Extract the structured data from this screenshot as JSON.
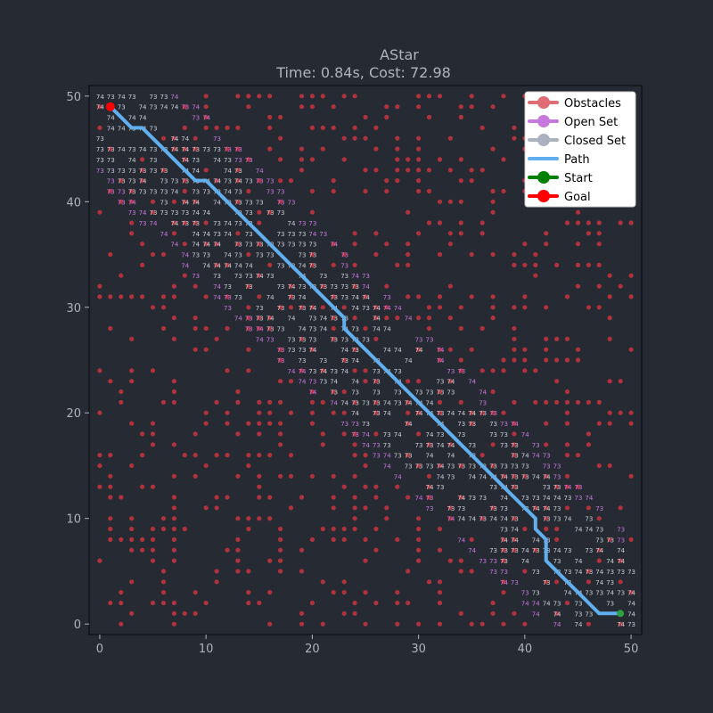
{
  "chart_data": {
    "type": "scatter",
    "title": "AStar",
    "subtitle": "Time: 0.84s, Cost: 72.98",
    "xlim": [
      -1,
      51
    ],
    "ylim": [
      -1,
      51
    ],
    "x_ticks": [
      0,
      10,
      20,
      30,
      40,
      50
    ],
    "y_ticks": [
      0,
      10,
      20,
      30,
      40,
      50
    ],
    "grid": false,
    "legend_position": "top-right",
    "start": [
      49,
      1
    ],
    "goal": [
      1,
      49
    ],
    "path": [
      [
        49,
        1
      ],
      [
        48,
        1
      ],
      [
        47,
        1
      ],
      [
        46,
        2
      ],
      [
        45,
        3
      ],
      [
        44,
        4
      ],
      [
        43,
        5
      ],
      [
        42,
        6
      ],
      [
        42,
        7
      ],
      [
        42,
        8
      ],
      [
        41,
        9
      ],
      [
        41,
        10
      ],
      [
        40,
        11
      ],
      [
        39,
        12
      ],
      [
        38,
        13
      ],
      [
        37,
        14
      ],
      [
        36,
        15
      ],
      [
        35,
        16
      ],
      [
        34,
        17
      ],
      [
        33,
        18
      ],
      [
        32,
        19
      ],
      [
        31,
        20
      ],
      [
        30,
        21
      ],
      [
        29,
        22
      ],
      [
        28,
        23
      ],
      [
        27,
        24
      ],
      [
        26,
        25
      ],
      [
        25,
        26
      ],
      [
        24,
        27
      ],
      [
        23,
        28
      ],
      [
        23,
        29
      ],
      [
        22,
        30
      ],
      [
        21,
        31
      ],
      [
        20,
        32
      ],
      [
        19,
        33
      ],
      [
        18,
        34
      ],
      [
        17,
        35
      ],
      [
        16,
        36
      ],
      [
        15,
        37
      ],
      [
        14,
        38
      ],
      [
        13,
        39
      ],
      [
        12,
        40
      ],
      [
        11,
        41
      ],
      [
        10,
        42
      ],
      [
        9,
        42
      ],
      [
        8,
        43
      ],
      [
        7,
        44
      ],
      [
        6,
        45
      ],
      [
        5,
        46
      ],
      [
        4,
        47
      ],
      [
        3,
        47
      ],
      [
        2,
        48
      ],
      [
        1,
        49
      ]
    ],
    "band_halfwidth": 5,
    "obstacle_density": 0.3,
    "series": [
      {
        "name": "Obstacles",
        "color": "#e06c75",
        "marker": "dot",
        "line": true
      },
      {
        "name": "Open Set",
        "color": "#c678dd",
        "marker": "dot",
        "line": true
      },
      {
        "name": "Closed Set",
        "color": "#abb2bf",
        "marker": "dot",
        "line": true
      },
      {
        "name": "Path",
        "color": "#61afef",
        "marker": "none",
        "line": true
      },
      {
        "name": "Start",
        "color": "#008000",
        "marker": "dot",
        "line": true
      },
      {
        "name": "Goal",
        "color": "#ff0000",
        "marker": "dot",
        "line": true
      }
    ],
    "colors": {
      "background": "#262a33",
      "axes_background": "#262a33",
      "spine": "#0d0f14",
      "text": "#aeb3bd",
      "obstacle_dot": "#b0323d",
      "closed_label": "#c8ccd4",
      "open_label": "#c678dd"
    }
  }
}
